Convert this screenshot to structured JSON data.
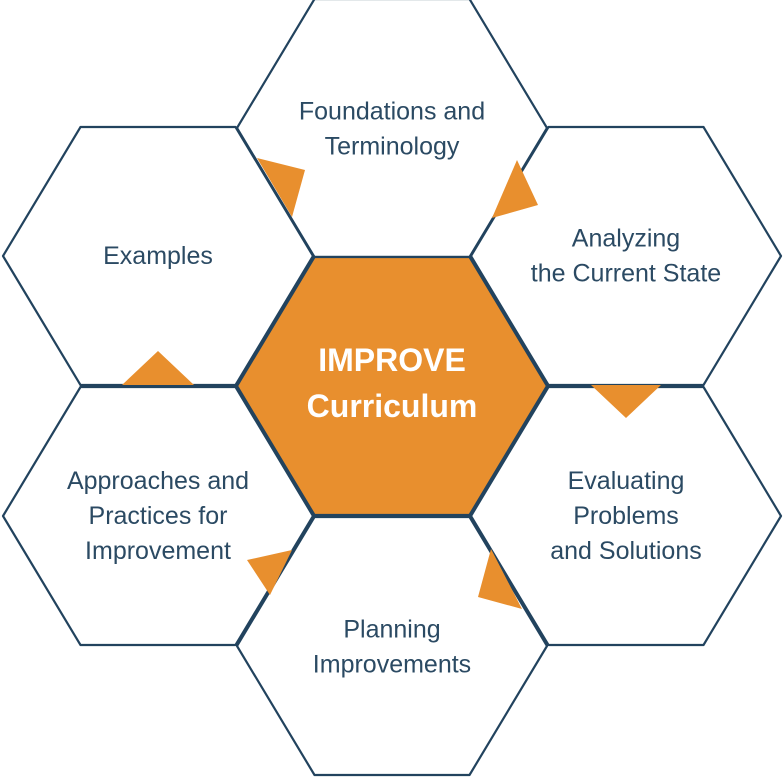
{
  "colors": {
    "accent": "#E88F2E",
    "outline": "#22435E",
    "label": "#2B4A63",
    "center_label": "#FFFFFF",
    "background": "#FFFFFF"
  },
  "center": {
    "lines": [
      "IMPROVE",
      "Curriculum"
    ]
  },
  "modules": [
    {
      "id": "foundations",
      "lines": [
        "Foundations and",
        "Terminology"
      ]
    },
    {
      "id": "analyzing",
      "lines": [
        "Analyzing",
        "the Current State"
      ]
    },
    {
      "id": "evaluating",
      "lines": [
        "Evaluating",
        "Problems",
        "and Solutions"
      ]
    },
    {
      "id": "planning",
      "lines": [
        "Planning",
        "Improvements"
      ]
    },
    {
      "id": "approaches",
      "lines": [
        "Approaches and",
        "Practices for",
        "Improvement"
      ]
    },
    {
      "id": "examples",
      "lines": [
        "Examples"
      ]
    }
  ],
  "flow_arrows": [
    {
      "from": "foundations",
      "to": "analyzing"
    },
    {
      "from": "analyzing",
      "to": "evaluating"
    },
    {
      "from": "evaluating",
      "to": "planning"
    },
    {
      "from": "planning",
      "to": "approaches"
    },
    {
      "from": "approaches",
      "to": "examples"
    },
    {
      "from": "examples",
      "to": "foundations"
    }
  ]
}
